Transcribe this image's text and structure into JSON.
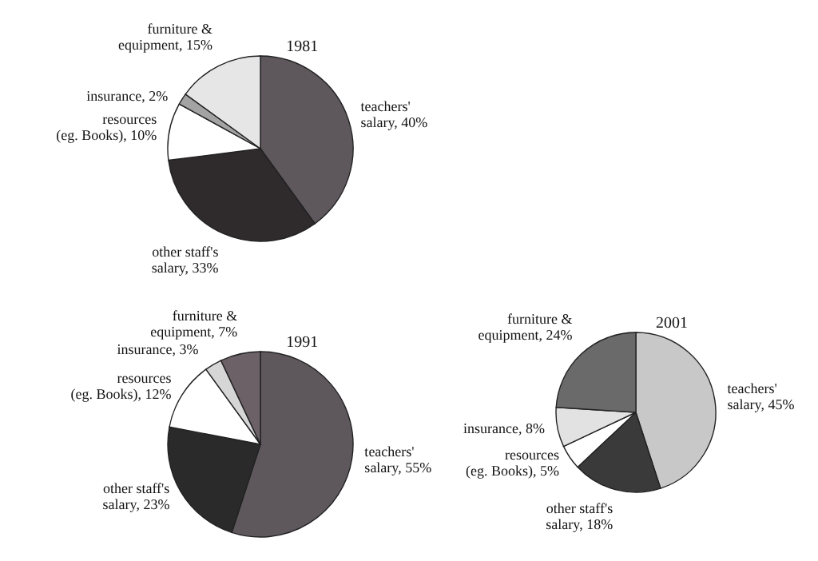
{
  "chart_data": [
    {
      "type": "pie",
      "title": "1981",
      "categories": [
        "teachers' salary",
        "other staff's salary",
        "resources (eg. Books)",
        "insurance",
        "furniture & equipment"
      ],
      "values": [
        40,
        33,
        10,
        2,
        15
      ],
      "value_labels": [
        "40%",
        "33%",
        "10%",
        "2%",
        "15%"
      ],
      "colors": [
        "#5e585c",
        "#2f2b2d",
        "#ffffff",
        "#a3a3a3",
        "#e6e6e6"
      ]
    },
    {
      "type": "pie",
      "title": "1991",
      "categories": [
        "teachers' salary",
        "other staff's salary",
        "resources (eg. Books)",
        "insurance",
        "furniture & equipment"
      ],
      "values": [
        55,
        23,
        12,
        3,
        7
      ],
      "value_labels": [
        "55%",
        "23%",
        "12%",
        "3%",
        "7%"
      ],
      "colors": [
        "#5e585c",
        "#2a2a2a",
        "#ffffff",
        "#d6d6d6",
        "#6b6167"
      ]
    },
    {
      "type": "pie",
      "title": "2001",
      "categories": [
        "teachers' salary",
        "other staff's salary",
        "resources (eg. Books)",
        "insurance",
        "furniture & equipment"
      ],
      "values": [
        45,
        18,
        5,
        8,
        24
      ],
      "value_labels": [
        "45%",
        "18%",
        "5%",
        "8%",
        "24%"
      ],
      "colors": [
        "#c8c8c8",
        "#3a3a3a",
        "#ffffff",
        "#e2e2e2",
        "#6a6a6a"
      ]
    }
  ]
}
